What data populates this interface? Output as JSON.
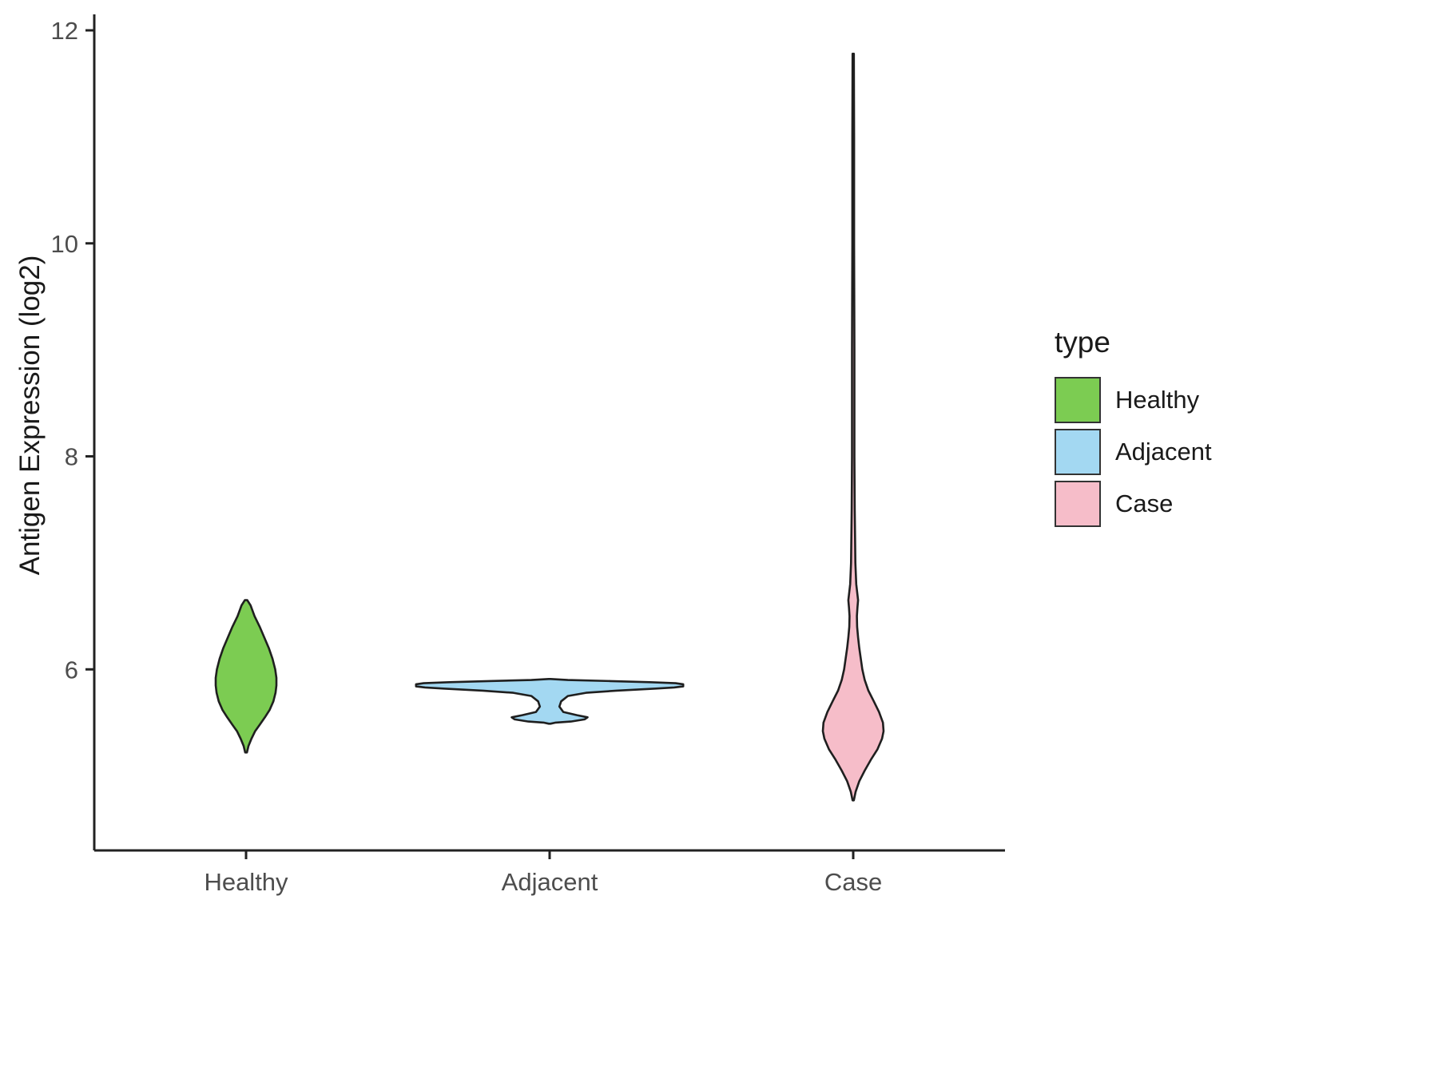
{
  "chart_data": {
    "type": "violin",
    "title": "",
    "xlabel": "",
    "ylabel": "Antigen Expression (log2)",
    "categories": [
      "Healthy",
      "Adjacent",
      "Case"
    ],
    "ylim": [
      4.3,
      12.15
    ],
    "yticks": [
      6,
      8,
      10,
      12
    ],
    "grid": "off",
    "style": {
      "outline_color": "#1f1f1f",
      "axis_color": "#222222",
      "tick_label_color": "#4d4d4d"
    },
    "legend": {
      "title": "type",
      "position": "right",
      "entries": [
        {
          "label": "Healthy",
          "color": "#7CCC52"
        },
        {
          "label": "Adjacent",
          "color": "#A3D8F2"
        },
        {
          "label": "Case",
          "color": "#F6BDC9"
        }
      ]
    },
    "series": [
      {
        "name": "Healthy",
        "color": "#7CCC52",
        "summary": {
          "min": 5.2,
          "max": 6.65,
          "peak_density_value": 5.85
        },
        "profile": [
          [
            6.65,
            0.004
          ],
          [
            6.6,
            0.015
          ],
          [
            6.5,
            0.028
          ],
          [
            6.4,
            0.045
          ],
          [
            6.3,
            0.06
          ],
          [
            6.2,
            0.075
          ],
          [
            6.1,
            0.087
          ],
          [
            6.0,
            0.096
          ],
          [
            5.92,
            0.1
          ],
          [
            5.85,
            0.1
          ],
          [
            5.78,
            0.097
          ],
          [
            5.7,
            0.09
          ],
          [
            5.62,
            0.078
          ],
          [
            5.55,
            0.062
          ],
          [
            5.48,
            0.045
          ],
          [
            5.42,
            0.03
          ],
          [
            5.35,
            0.018
          ],
          [
            5.28,
            0.008
          ],
          [
            5.22,
            0.003
          ]
        ]
      },
      {
        "name": "Adjacent",
        "color": "#A3D8F2",
        "summary": {
          "min": 5.49,
          "max": 5.91,
          "peak_density_value": 5.85
        },
        "profile": [
          [
            5.91,
            0.003
          ],
          [
            5.9,
            0.06
          ],
          [
            5.89,
            0.2
          ],
          [
            5.88,
            0.33
          ],
          [
            5.87,
            0.415
          ],
          [
            5.86,
            0.44
          ],
          [
            5.84,
            0.44
          ],
          [
            5.83,
            0.41
          ],
          [
            5.82,
            0.35
          ],
          [
            5.8,
            0.22
          ],
          [
            5.78,
            0.12
          ],
          [
            5.75,
            0.06
          ],
          [
            5.7,
            0.038
          ],
          [
            5.65,
            0.032
          ],
          [
            5.6,
            0.045
          ],
          [
            5.57,
            0.09
          ],
          [
            5.55,
            0.125
          ],
          [
            5.53,
            0.115
          ],
          [
            5.51,
            0.07
          ],
          [
            5.5,
            0.02
          ],
          [
            5.49,
            0.003
          ]
        ]
      },
      {
        "name": "Case",
        "color": "#F6BDC9",
        "summary": {
          "min": 4.77,
          "max": 11.78,
          "peak_density_value": 5.42
        },
        "profile": [
          [
            11.78,
            0.002
          ],
          [
            11.0,
            0.003
          ],
          [
            10.0,
            0.003
          ],
          [
            9.0,
            0.004
          ],
          [
            8.0,
            0.004
          ],
          [
            7.5,
            0.005
          ],
          [
            7.0,
            0.007
          ],
          [
            6.8,
            0.01
          ],
          [
            6.65,
            0.016
          ],
          [
            6.58,
            0.014
          ],
          [
            6.5,
            0.012
          ],
          [
            6.4,
            0.013
          ],
          [
            6.3,
            0.016
          ],
          [
            6.2,
            0.02
          ],
          [
            6.1,
            0.025
          ],
          [
            6.0,
            0.03
          ],
          [
            5.9,
            0.038
          ],
          [
            5.8,
            0.05
          ],
          [
            5.7,
            0.068
          ],
          [
            5.6,
            0.085
          ],
          [
            5.5,
            0.098
          ],
          [
            5.42,
            0.1
          ],
          [
            5.35,
            0.095
          ],
          [
            5.25,
            0.08
          ],
          [
            5.15,
            0.058
          ],
          [
            5.05,
            0.038
          ],
          [
            4.95,
            0.02
          ],
          [
            4.85,
            0.008
          ],
          [
            4.77,
            0.002
          ]
        ]
      }
    ]
  }
}
